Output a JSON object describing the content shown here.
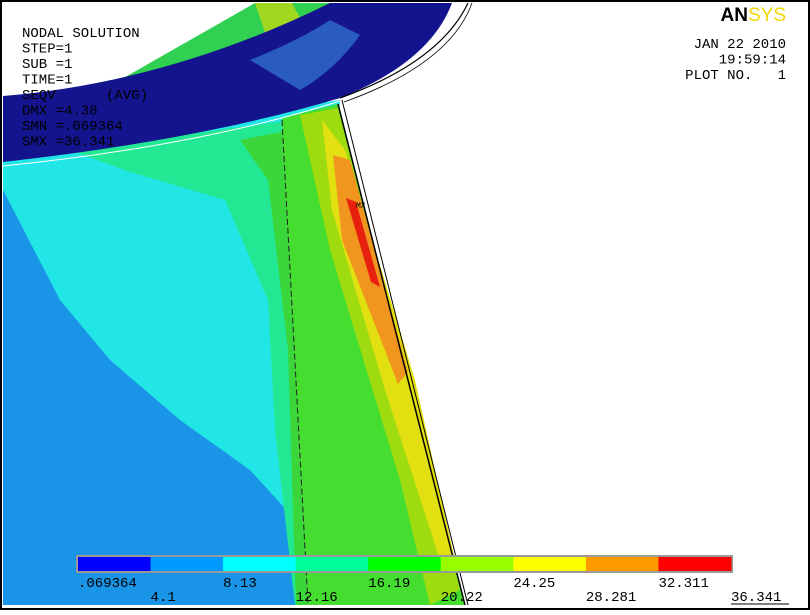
{
  "header": {
    "left_lines": [
      "NODAL SOLUTION",
      "STEP=1",
      "SUB =1",
      "TIME=1",
      "SEQV      (AVG)",
      "DMX =4.38",
      "SMN =.069364",
      "SMX =36.341"
    ],
    "logo": {
      "dark": "AN",
      "accent": "SYS"
    },
    "right_lines": [
      "JAN 22 2010",
      "19:59:14",
      "PLOT NO.   1"
    ]
  },
  "marker": "MX",
  "legend": {
    "colors": [
      "#0000ff",
      "#0099ff",
      "#00ffff",
      "#00ff99",
      "#00ff00",
      "#99ff00",
      "#ffff00",
      "#ff9900",
      "#ff0000"
    ],
    "labels": [
      ".069364",
      "4.1",
      "8.13",
      "12.16",
      "16.19",
      "20.22",
      "24.25",
      "28.281",
      "32.311",
      "36.341"
    ]
  }
}
